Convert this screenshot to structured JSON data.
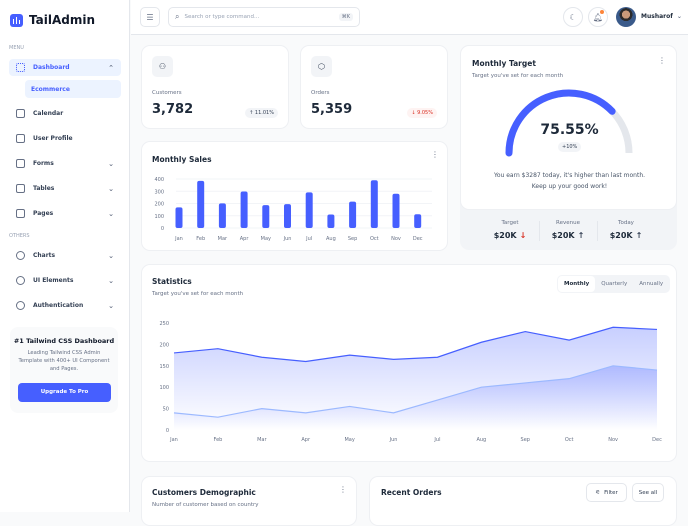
{
  "app": {
    "name": "TailAdmin"
  },
  "colors": {
    "brand": "#465fff",
    "up": "#039855",
    "down": "#d92d20",
    "series2": "#9cb9ff"
  },
  "sidebar": {
    "menu_label": "MENU",
    "others_label": "OTHERS",
    "items": [
      {
        "label": "Dashboard",
        "icon": "grid-icon",
        "expanded": true,
        "active": true
      },
      {
        "label": "Calendar",
        "icon": "calendar-icon"
      },
      {
        "label": "User Profile",
        "icon": "user-circle-icon"
      },
      {
        "label": "Forms",
        "icon": "list-icon",
        "has_children": true
      },
      {
        "label": "Tables",
        "icon": "table-icon",
        "has_children": true
      },
      {
        "label": "Pages",
        "icon": "pages-icon",
        "has_children": true
      }
    ],
    "sub_items": [
      {
        "label": "Ecommerce",
        "active": true
      }
    ],
    "others": [
      {
        "label": "Charts",
        "icon": "pie-chart-icon"
      },
      {
        "label": "UI Elements",
        "icon": "box-icon"
      },
      {
        "label": "Authentication",
        "icon": "plug-icon"
      }
    ],
    "promo": {
      "title": "#1 Tailwind CSS Dashboard",
      "text": "Leading Tailwind CSS Admin Template with 400+ UI Component and Pages.",
      "button": "Upgrade To Pro"
    }
  },
  "header": {
    "search_placeholder": "Search or type command...",
    "shortcut": "⌘K",
    "user": "Musharof",
    "notification_dot": true
  },
  "metrics": [
    {
      "label": "Customers",
      "value": "3,782",
      "change": "11.01%",
      "direction": "up",
      "icon": "users-icon"
    },
    {
      "label": "Orders",
      "value": "5,359",
      "change": "9.05%",
      "direction": "down",
      "icon": "box-icon"
    }
  ],
  "monthly_sales": {
    "title": "Monthly Sales"
  },
  "monthly_target": {
    "title": "Monthly Target",
    "subtitle": "Target you've set for each month",
    "percent": 75.55,
    "percent_label": "75.55%",
    "change": "+10%",
    "message": "You earn $3287 today, it's higher than last month. Keep up your good work!",
    "stats": [
      {
        "label": "Target",
        "value": "$20K",
        "direction": "down"
      },
      {
        "label": "Revenue",
        "value": "$20K",
        "direction": "up"
      },
      {
        "label": "Today",
        "value": "$20K",
        "direction": "up"
      }
    ]
  },
  "statistics": {
    "title": "Statistics",
    "subtitle": "Target you've set for each month",
    "tabs": [
      "Monthly",
      "Quarterly",
      "Annually"
    ],
    "active_tab": "Monthly"
  },
  "demographic": {
    "title": "Customers Demographic",
    "subtitle": "Number of customer based on country"
  },
  "recent_orders": {
    "title": "Recent Orders",
    "filter": "Filter",
    "see_all": "See all"
  },
  "chart_data": [
    {
      "type": "bar",
      "categories": [
        "Jan",
        "Feb",
        "Mar",
        "Apr",
        "May",
        "Jun",
        "Jul",
        "Aug",
        "Sep",
        "Oct",
        "Nov",
        "Dec"
      ],
      "values": [
        168,
        385,
        201,
        298,
        187,
        195,
        291,
        110,
        215,
        390,
        280,
        112
      ],
      "ylim": [
        0,
        400
      ],
      "yticks": [
        0,
        100,
        200,
        300,
        400
      ],
      "grid": true
    },
    {
      "type": "area",
      "categories": [
        "Jan",
        "Feb",
        "Mar",
        "Apr",
        "May",
        "Jun",
        "Jul",
        "Aug",
        "Sep",
        "Oct",
        "Nov",
        "Dec"
      ],
      "series": [
        {
          "values": [
            180,
            190,
            170,
            160,
            175,
            165,
            170,
            205,
            230,
            210,
            240,
            235
          ]
        },
        {
          "values": [
            40,
            30,
            50,
            40,
            55,
            40,
            70,
            100,
            110,
            120,
            150,
            140
          ]
        }
      ],
      "ylim": [
        0,
        250
      ],
      "yticks": [
        0,
        50,
        100,
        150,
        200,
        250
      ],
      "grid": false
    }
  ]
}
